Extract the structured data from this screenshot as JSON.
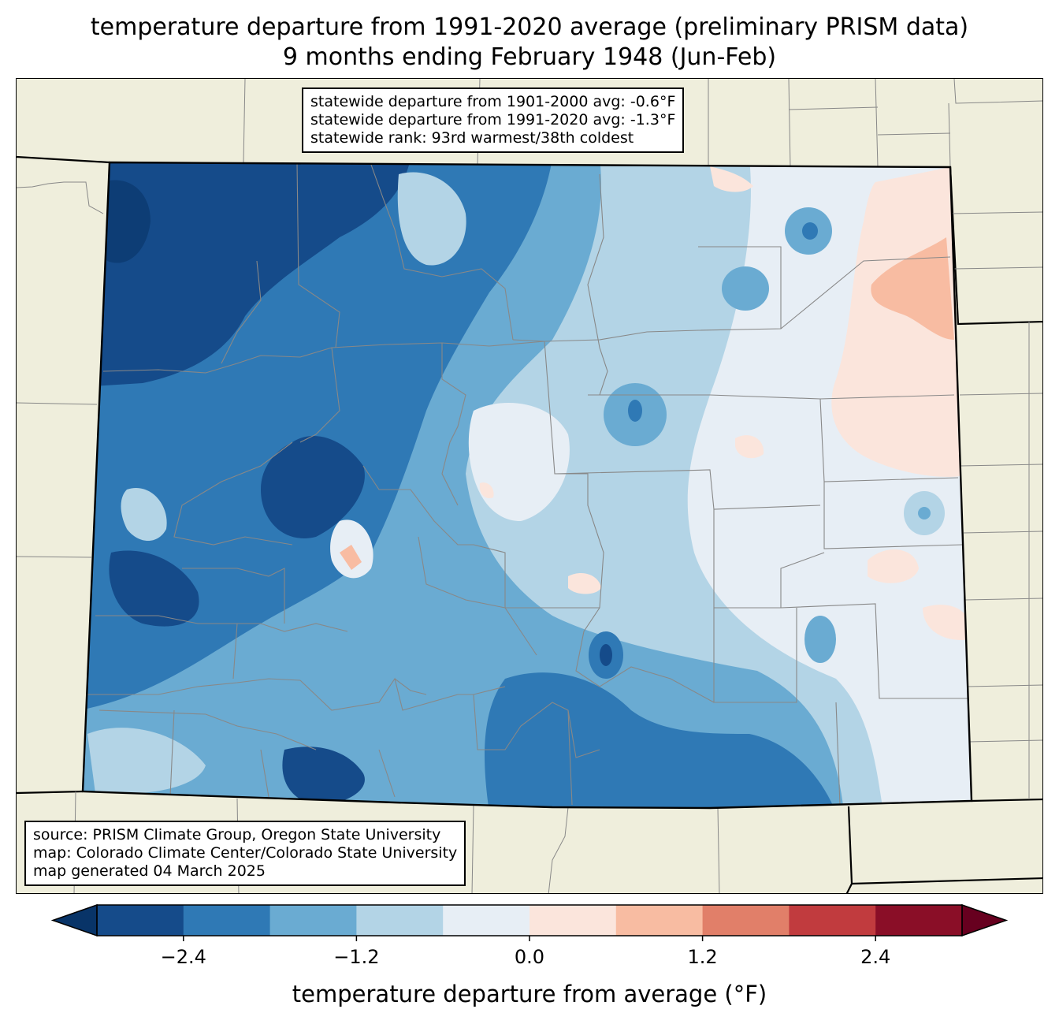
{
  "title": {
    "line1": "temperature departure from 1991-2020 average (preliminary PRISM data)",
    "line2": "9 months ending February 1948 (Jun-Feb)"
  },
  "stats": {
    "line1": "statewide departure from 1901-2000 avg: -0.6°F",
    "line2": "statewide departure from 1991-2020 avg: -1.3°F",
    "line3": "statewide rank: 93rd warmest/38th coldest"
  },
  "source": {
    "line1": "source: PRISM Climate Group, Oregon State University",
    "line2": "map: Colorado Climate Center/Colorado State University",
    "line3": "map generated 04 March 2025"
  },
  "colorbar": {
    "label": "temperature departure from average (°F)",
    "ticks": [
      "−2.4",
      "−1.2",
      "0.0",
      "1.2",
      "2.4"
    ],
    "tick_values": [
      -2.4,
      -1.2,
      0.0,
      1.2,
      2.4
    ],
    "range": [
      -3.0,
      3.0
    ],
    "bins": [
      {
        "min": -3.0,
        "max": -2.4,
        "color": "#154b8a"
      },
      {
        "min": -2.4,
        "max": -1.8,
        "color": "#2f79b5"
      },
      {
        "min": -1.8,
        "max": -1.2,
        "color": "#6aabd2"
      },
      {
        "min": -1.2,
        "max": -0.6,
        "color": "#b3d4e6"
      },
      {
        "min": -0.6,
        "max": 0.0,
        "color": "#e7eef5"
      },
      {
        "min": 0.0,
        "max": 0.6,
        "color": "#fbe5dc"
      },
      {
        "min": 0.6,
        "max": 1.2,
        "color": "#f8bca2"
      },
      {
        "min": 1.2,
        "max": 1.8,
        "color": "#e17f69"
      },
      {
        "min": 1.8,
        "max": 2.4,
        "color": "#c13b3e"
      },
      {
        "min": 2.4,
        "max": 3.0,
        "color": "#8a0e27"
      }
    ],
    "under_color": "#083468",
    "over_color": "#67001f"
  },
  "colors": {
    "land_outside": "#efeedc",
    "county_lines": "#888888",
    "state_lines": "#000000"
  }
}
